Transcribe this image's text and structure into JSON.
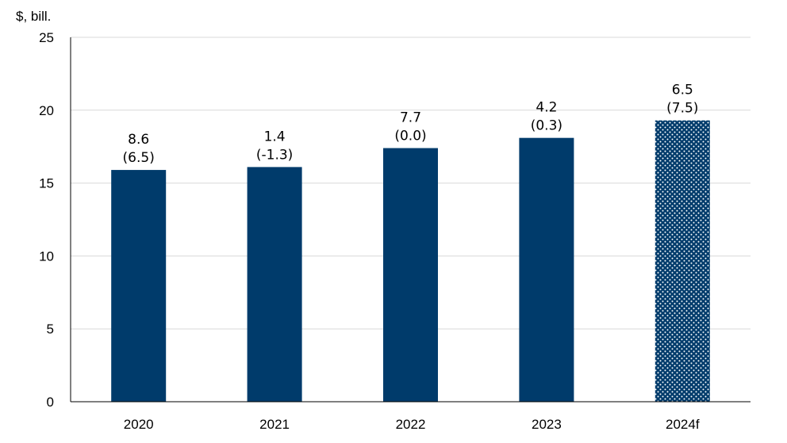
{
  "chart_data": {
    "type": "bar",
    "ylabel": "$, bill.",
    "ylim": [
      0,
      25
    ],
    "yticks": [
      0,
      5,
      10,
      15,
      20,
      25
    ],
    "grid": true,
    "categories": [
      "2020",
      "2021",
      "2022",
      "2023",
      "2024f"
    ],
    "values": [
      15.9,
      16.1,
      17.4,
      18.1,
      19.3
    ],
    "labels_top": [
      "8.6",
      "1.4",
      "7.7",
      "4.2",
      "6.5"
    ],
    "labels_paren": [
      "(6.5)",
      "(-1.3)",
      "(0.0)",
      "(0.3)",
      "(7.5)"
    ],
    "forecast_category": "2024f",
    "colors": {
      "bar": "#003b6b",
      "grid": "#d9d9d9",
      "axis": "#000000"
    }
  }
}
